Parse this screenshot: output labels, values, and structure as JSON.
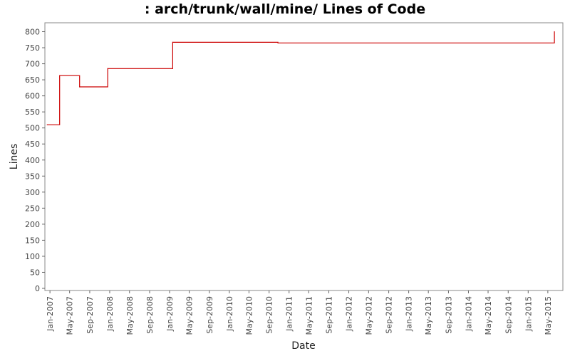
{
  "chart_data": {
    "type": "line",
    "title": ": arch/trunk/wall/mine/ Lines of Code",
    "xlabel": "Date",
    "ylabel": "Lines",
    "ylim": [
      0,
      810
    ],
    "yticks": [
      0,
      50,
      100,
      150,
      200,
      250,
      300,
      350,
      400,
      450,
      500,
      550,
      600,
      650,
      700,
      750,
      800
    ],
    "xlim": [
      "2006-12-01",
      "2015-08-01"
    ],
    "xticks": [
      "Jan-2007",
      "May-2007",
      "Sep-2007",
      "Jan-2008",
      "May-2008",
      "Sep-2008",
      "Jan-2009",
      "May-2009",
      "Sep-2009",
      "Jan-2010",
      "May-2010",
      "Sep-2010",
      "Jan-2011",
      "May-2011",
      "Sep-2011",
      "Jan-2012",
      "May-2012",
      "Sep-2012",
      "Jan-2013",
      "May-2013",
      "Sep-2013",
      "Jan-2014",
      "May-2014",
      "Sep-2014",
      "Jan-2015",
      "May-2015"
    ],
    "grid": false,
    "line_color": "#cc0000",
    "series": [
      {
        "step": true,
        "points": [
          {
            "x": "2006-12-15",
            "y": 510
          },
          {
            "x": "2007-03-01",
            "y": 663
          },
          {
            "x": "2007-07-01",
            "y": 628
          },
          {
            "x": "2007-12-20",
            "y": 685
          },
          {
            "x": "2009-01-20",
            "y": 767
          },
          {
            "x": "2010-10-25",
            "y": 765
          },
          {
            "x": "2015-06-10",
            "y": 800
          }
        ],
        "end_x": "2015-06-10"
      }
    ]
  }
}
